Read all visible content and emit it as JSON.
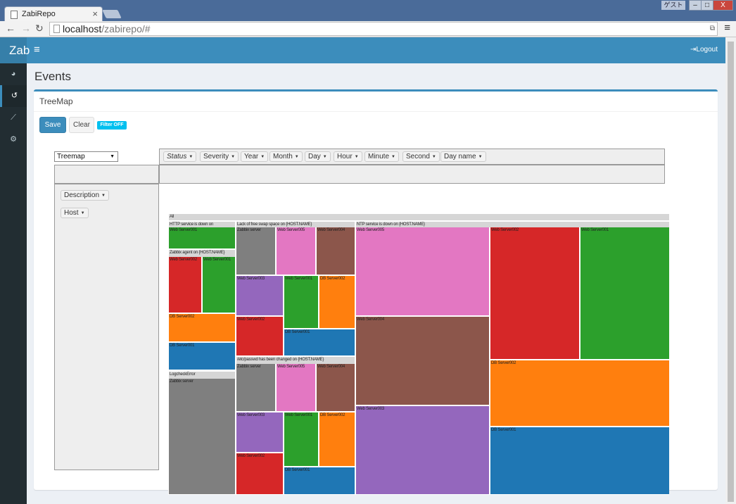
{
  "browser": {
    "tab_title": "ZabiRepo",
    "tab_close": "×",
    "guest_label": "ゲスト",
    "url_host": "localhost",
    "url_path": "/zabirepo/#",
    "win_minimize": "–",
    "win_maximize": "□",
    "win_close": "X"
  },
  "app": {
    "brand": "Zab",
    "logout_label": "Logout"
  },
  "page": {
    "title": "Events",
    "box_title": "TreeMap",
    "save_label": "Save",
    "clear_label": "Clear",
    "filter_badge": "Filter OFF"
  },
  "pivot": {
    "renderer": "Treemap",
    "col_attrs": [
      "Status",
      "Severity",
      "Year",
      "Month",
      "Day",
      "Hour",
      "Minute",
      "Second",
      "Day name"
    ],
    "row_attrs": [
      "Description",
      "Host"
    ]
  },
  "colors": {
    "header": "#3c8dbc",
    "sidebar": "#222d32",
    "green": "#2ca02c",
    "red": "#d62728",
    "orange": "#ff7f0e",
    "blue": "#1f77b4",
    "gray": "#7f7f7f",
    "pink": "#e377c2",
    "brown": "#8c564b",
    "purple": "#9467bd"
  },
  "treemap": {
    "root_label": "All",
    "groups": [
      "HTTP service is down on",
      "Zabbix agent on {HOST.NAME}",
      "LogcheckError",
      "Lack of free swap space on {HOST.NAME}",
      "/etc/passwd has been changed on {HOST.NAME}",
      "NTP service is down on {HOST.NAME}"
    ],
    "cells": [
      {
        "label": "Web Server001",
        "color": "green"
      },
      {
        "label": "Web Server002",
        "color": "red"
      },
      {
        "label": "Web Server001",
        "color": "green"
      },
      {
        "label": "DB Server002",
        "color": "orange"
      },
      {
        "label": "DB Server001",
        "color": "blue"
      },
      {
        "label": "Zabbix server",
        "color": "gray"
      },
      {
        "label": "Zabbix server",
        "color": "gray"
      },
      {
        "label": "Web Server005",
        "color": "pink"
      },
      {
        "label": "Web Server004",
        "color": "brown"
      },
      {
        "label": "Web Server003",
        "color": "purple"
      },
      {
        "label": "Web Server001",
        "color": "green"
      },
      {
        "label": "DB Server002",
        "color": "orange"
      },
      {
        "label": "Web Server002",
        "color": "red"
      },
      {
        "label": "DB Server001",
        "color": "blue"
      },
      {
        "label": "Zabbix server",
        "color": "gray"
      },
      {
        "label": "Web Server005",
        "color": "pink"
      },
      {
        "label": "Web Server004",
        "color": "brown"
      },
      {
        "label": "Web Server003",
        "color": "purple"
      },
      {
        "label": "Web Server001",
        "color": "green"
      },
      {
        "label": "DB Server002",
        "color": "orange"
      },
      {
        "label": "Web Server002",
        "color": "red"
      },
      {
        "label": "DB Server001",
        "color": "blue"
      },
      {
        "label": "Web Server005",
        "color": "pink"
      },
      {
        "label": "Web Server004",
        "color": "brown"
      },
      {
        "label": "Web Server003",
        "color": "purple"
      },
      {
        "label": "Web Server002",
        "color": "red"
      },
      {
        "label": "Web Server001",
        "color": "green"
      },
      {
        "label": "DB Server002",
        "color": "orange"
      },
      {
        "label": "DB Server001",
        "color": "blue"
      }
    ]
  }
}
